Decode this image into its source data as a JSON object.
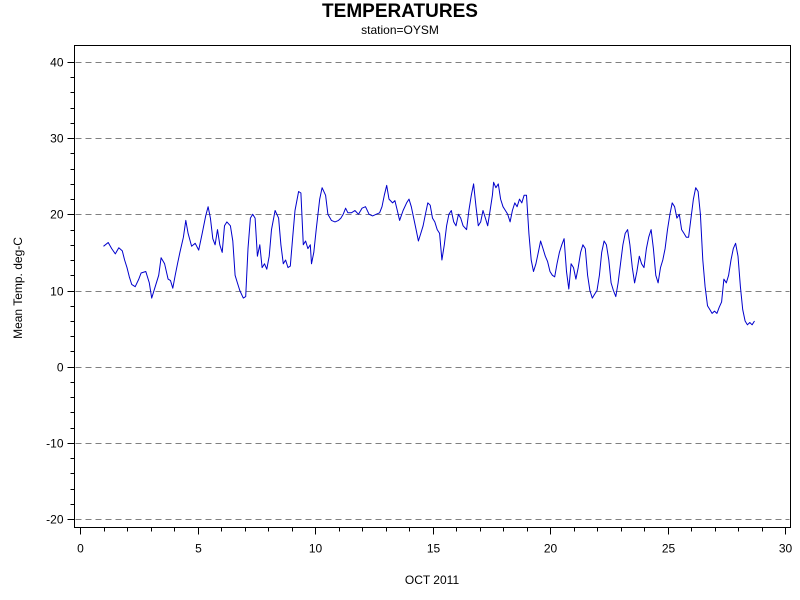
{
  "chart_data": {
    "type": "line",
    "title": "TEMPERATURES",
    "subtitle": "station=OYSM",
    "xlabel": "OCT 2011",
    "ylabel": "Mean Temp. deg-C",
    "xlim": [
      0,
      30
    ],
    "ylim": [
      -20,
      40
    ],
    "x_ticks": [
      0,
      5,
      10,
      15,
      20,
      25,
      30
    ],
    "x_tick_labels": [
      "0",
      "5",
      "10",
      "15",
      "20",
      "25",
      "30"
    ],
    "y_ticks": [
      -20,
      -10,
      0,
      10,
      20,
      30,
      40
    ],
    "y_tick_labels": [
      "-20",
      "-10",
      "0",
      "10",
      "20",
      "30",
      "40"
    ],
    "grid": "horizontal-dashed",
    "series": [
      {
        "color": "#0000cc",
        "points": [
          [
            1.0,
            15.8
          ],
          [
            1.2,
            16.3
          ],
          [
            1.35,
            15.5
          ],
          [
            1.5,
            14.8
          ],
          [
            1.65,
            15.6
          ],
          [
            1.8,
            15.2
          ],
          [
            1.9,
            14.0
          ],
          [
            2.0,
            13.0
          ],
          [
            2.1,
            11.8
          ],
          [
            2.2,
            10.8
          ],
          [
            2.35,
            10.5
          ],
          [
            2.5,
            11.5
          ],
          [
            2.6,
            12.3
          ],
          [
            2.8,
            12.5
          ],
          [
            2.95,
            11.0
          ],
          [
            3.05,
            9.0
          ],
          [
            3.2,
            10.5
          ],
          [
            3.35,
            12.0
          ],
          [
            3.45,
            14.3
          ],
          [
            3.6,
            13.5
          ],
          [
            3.75,
            11.5
          ],
          [
            3.85,
            11.3
          ],
          [
            3.95,
            10.3
          ],
          [
            4.05,
            12.0
          ],
          [
            4.15,
            13.5
          ],
          [
            4.25,
            15.0
          ],
          [
            4.4,
            17.0
          ],
          [
            4.5,
            19.2
          ],
          [
            4.6,
            17.5
          ],
          [
            4.75,
            15.8
          ],
          [
            4.9,
            16.2
          ],
          [
            5.05,
            15.3
          ],
          [
            5.2,
            17.5
          ],
          [
            5.35,
            19.8
          ],
          [
            5.45,
            21.0
          ],
          [
            5.55,
            19.5
          ],
          [
            5.65,
            16.8
          ],
          [
            5.75,
            16.0
          ],
          [
            5.85,
            18.0
          ],
          [
            5.95,
            16.0
          ],
          [
            6.05,
            15.0
          ],
          [
            6.15,
            18.5
          ],
          [
            6.25,
            19.0
          ],
          [
            6.4,
            18.5
          ],
          [
            6.5,
            16.5
          ],
          [
            6.6,
            12.0
          ],
          [
            6.7,
            11.0
          ],
          [
            6.8,
            10.0
          ],
          [
            6.95,
            9.0
          ],
          [
            7.05,
            9.2
          ],
          [
            7.15,
            15.5
          ],
          [
            7.25,
            19.5
          ],
          [
            7.35,
            20.0
          ],
          [
            7.45,
            19.5
          ],
          [
            7.55,
            14.5
          ],
          [
            7.65,
            16.0
          ],
          [
            7.75,
            13.0
          ],
          [
            7.85,
            13.5
          ],
          [
            7.95,
            12.8
          ],
          [
            8.05,
            14.5
          ],
          [
            8.15,
            18.0
          ],
          [
            8.3,
            20.5
          ],
          [
            8.45,
            19.5
          ],
          [
            8.55,
            16.0
          ],
          [
            8.65,
            13.5
          ],
          [
            8.75,
            14.0
          ],
          [
            8.85,
            13.0
          ],
          [
            8.95,
            13.2
          ],
          [
            9.05,
            17.0
          ],
          [
            9.15,
            20.5
          ],
          [
            9.3,
            23.0
          ],
          [
            9.4,
            22.8
          ],
          [
            9.5,
            16.0
          ],
          [
            9.6,
            16.5
          ],
          [
            9.7,
            15.5
          ],
          [
            9.8,
            16.0
          ],
          [
            9.85,
            13.5
          ],
          [
            9.95,
            15.0
          ],
          [
            10.05,
            18.0
          ],
          [
            10.2,
            22.0
          ],
          [
            10.3,
            23.5
          ],
          [
            10.45,
            22.5
          ],
          [
            10.55,
            20.0
          ],
          [
            10.7,
            19.2
          ],
          [
            10.85,
            19.0
          ],
          [
            11.0,
            19.2
          ],
          [
            11.1,
            19.5
          ],
          [
            11.2,
            20.0
          ],
          [
            11.3,
            20.8
          ],
          [
            11.4,
            20.2
          ],
          [
            11.55,
            20.2
          ],
          [
            11.7,
            20.5
          ],
          [
            11.85,
            20.0
          ],
          [
            12.0,
            20.8
          ],
          [
            12.15,
            21.0
          ],
          [
            12.3,
            20.0
          ],
          [
            12.45,
            19.8
          ],
          [
            12.6,
            20.0
          ],
          [
            12.75,
            20.2
          ],
          [
            12.85,
            21.0
          ],
          [
            12.95,
            22.5
          ],
          [
            13.05,
            23.8
          ],
          [
            13.15,
            22.0
          ],
          [
            13.3,
            21.5
          ],
          [
            13.4,
            21.8
          ],
          [
            13.5,
            20.5
          ],
          [
            13.6,
            19.2
          ],
          [
            13.75,
            20.5
          ],
          [
            13.9,
            21.5
          ],
          [
            14.0,
            22.0
          ],
          [
            14.1,
            21.0
          ],
          [
            14.2,
            19.5
          ],
          [
            14.3,
            18.0
          ],
          [
            14.4,
            16.5
          ],
          [
            14.5,
            17.5
          ],
          [
            14.6,
            18.5
          ],
          [
            14.7,
            20.0
          ],
          [
            14.8,
            21.5
          ],
          [
            14.9,
            21.2
          ],
          [
            15.0,
            19.5
          ],
          [
            15.1,
            19.0
          ],
          [
            15.2,
            18.0
          ],
          [
            15.3,
            17.5
          ],
          [
            15.4,
            14.0
          ],
          [
            15.5,
            16.0
          ],
          [
            15.6,
            18.5
          ],
          [
            15.7,
            20.0
          ],
          [
            15.8,
            20.5
          ],
          [
            15.9,
            19.0
          ],
          [
            16.0,
            18.5
          ],
          [
            16.1,
            20.0
          ],
          [
            16.2,
            19.5
          ],
          [
            16.3,
            18.5
          ],
          [
            16.45,
            18.0
          ],
          [
            16.55,
            20.5
          ],
          [
            16.65,
            22.5
          ],
          [
            16.75,
            24.0
          ],
          [
            16.85,
            21.0
          ],
          [
            16.95,
            18.5
          ],
          [
            17.05,
            19.0
          ],
          [
            17.15,
            20.5
          ],
          [
            17.25,
            19.5
          ],
          [
            17.35,
            18.5
          ],
          [
            17.45,
            20.5
          ],
          [
            17.55,
            22.5
          ],
          [
            17.6,
            24.2
          ],
          [
            17.7,
            23.5
          ],
          [
            17.8,
            24.0
          ],
          [
            17.9,
            22.0
          ],
          [
            18.0,
            21.0
          ],
          [
            18.1,
            20.5
          ],
          [
            18.2,
            20.0
          ],
          [
            18.3,
            19.0
          ],
          [
            18.4,
            20.5
          ],
          [
            18.5,
            21.5
          ],
          [
            18.6,
            21.0
          ],
          [
            18.7,
            22.0
          ],
          [
            18.8,
            21.5
          ],
          [
            18.9,
            22.5
          ],
          [
            19.0,
            22.5
          ],
          [
            19.1,
            17.5
          ],
          [
            19.2,
            14.0
          ],
          [
            19.3,
            12.5
          ],
          [
            19.4,
            13.5
          ],
          [
            19.5,
            15.0
          ],
          [
            19.6,
            16.5
          ],
          [
            19.7,
            15.5
          ],
          [
            19.8,
            14.5
          ],
          [
            19.9,
            13.8
          ],
          [
            20.0,
            12.5
          ],
          [
            20.1,
            12.0
          ],
          [
            20.2,
            11.8
          ],
          [
            20.3,
            13.5
          ],
          [
            20.4,
            15.0
          ],
          [
            20.5,
            16.0
          ],
          [
            20.6,
            16.8
          ],
          [
            20.7,
            12.5
          ],
          [
            20.8,
            10.2
          ],
          [
            20.9,
            13.5
          ],
          [
            21.0,
            13.0
          ],
          [
            21.1,
            11.5
          ],
          [
            21.2,
            13.0
          ],
          [
            21.3,
            15.0
          ],
          [
            21.4,
            16.0
          ],
          [
            21.5,
            15.5
          ],
          [
            21.6,
            12.0
          ],
          [
            21.7,
            10.0
          ],
          [
            21.8,
            9.0
          ],
          [
            21.9,
            9.5
          ],
          [
            22.0,
            10.0
          ],
          [
            22.1,
            12.0
          ],
          [
            22.2,
            15.0
          ],
          [
            22.3,
            16.5
          ],
          [
            22.4,
            16.0
          ],
          [
            22.5,
            14.0
          ],
          [
            22.6,
            11.0
          ],
          [
            22.7,
            10.0
          ],
          [
            22.8,
            9.2
          ],
          [
            22.9,
            11.0
          ],
          [
            23.0,
            13.5
          ],
          [
            23.1,
            16.0
          ],
          [
            23.2,
            17.5
          ],
          [
            23.3,
            18.0
          ],
          [
            23.4,
            16.0
          ],
          [
            23.5,
            13.0
          ],
          [
            23.6,
            11.0
          ],
          [
            23.7,
            12.5
          ],
          [
            23.8,
            14.5
          ],
          [
            23.9,
            13.5
          ],
          [
            24.0,
            13.0
          ],
          [
            24.1,
            15.5
          ],
          [
            24.2,
            17.0
          ],
          [
            24.3,
            18.0
          ],
          [
            24.4,
            15.5
          ],
          [
            24.5,
            12.0
          ],
          [
            24.6,
            11.0
          ],
          [
            24.7,
            13.0
          ],
          [
            24.8,
            14.0
          ],
          [
            24.9,
            15.5
          ],
          [
            25.0,
            18.0
          ],
          [
            25.1,
            20.0
          ],
          [
            25.2,
            21.5
          ],
          [
            25.3,
            21.0
          ],
          [
            25.4,
            19.5
          ],
          [
            25.5,
            20.0
          ],
          [
            25.6,
            18.0
          ],
          [
            25.7,
            17.5
          ],
          [
            25.8,
            17.0
          ],
          [
            25.9,
            17.0
          ],
          [
            26.0,
            19.5
          ],
          [
            26.1,
            22.0
          ],
          [
            26.2,
            23.5
          ],
          [
            26.3,
            23.0
          ],
          [
            26.4,
            20.0
          ],
          [
            26.5,
            14.0
          ],
          [
            26.6,
            10.5
          ],
          [
            26.7,
            8.0
          ],
          [
            26.8,
            7.5
          ],
          [
            26.9,
            7.0
          ],
          [
            27.0,
            7.3
          ],
          [
            27.1,
            7.0
          ],
          [
            27.2,
            7.8
          ],
          [
            27.3,
            8.5
          ],
          [
            27.4,
            11.5
          ],
          [
            27.5,
            11.0
          ],
          [
            27.6,
            12.0
          ],
          [
            27.7,
            14.0
          ],
          [
            27.8,
            15.5
          ],
          [
            27.9,
            16.2
          ],
          [
            28.0,
            14.5
          ],
          [
            28.1,
            10.5
          ],
          [
            28.2,
            7.5
          ],
          [
            28.3,
            6.0
          ],
          [
            28.4,
            5.5
          ],
          [
            28.5,
            5.8
          ],
          [
            28.6,
            5.5
          ],
          [
            28.7,
            6.0
          ]
        ]
      }
    ]
  }
}
